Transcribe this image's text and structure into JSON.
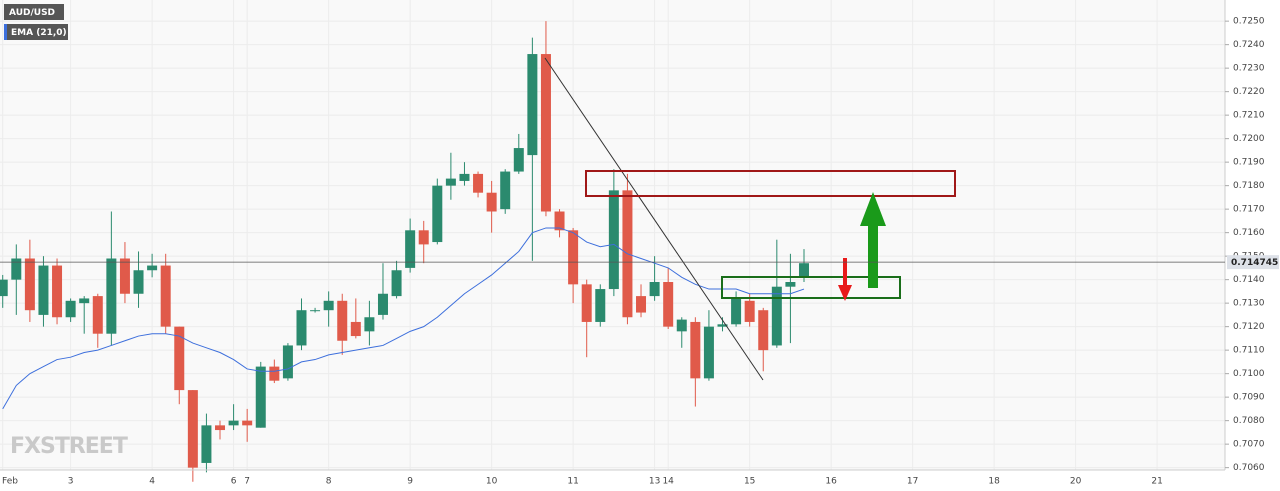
{
  "chart_data": {
    "type": "candlestick",
    "series": [
      {
        "name": "AUD/USD",
        "up_color": "#2b8a6e",
        "down_color": "#e05a4a",
        "x": [
          0,
          1,
          2,
          3,
          4,
          5,
          6,
          7,
          8,
          9,
          10,
          11,
          12,
          13,
          14,
          15,
          16,
          17,
          18,
          19,
          20,
          21,
          22,
          23,
          24,
          25,
          26,
          27,
          28,
          29,
          30,
          31,
          32,
          33,
          34,
          35,
          36,
          37,
          38,
          39,
          40,
          41,
          42,
          43,
          44,
          45,
          46,
          47,
          48,
          49,
          50,
          51,
          52,
          53,
          54,
          55,
          56,
          57,
          58,
          59
        ],
        "open": [
          0.7133,
          0.714,
          0.7149,
          0.7125,
          0.7146,
          0.7124,
          0.713,
          0.7133,
          0.7117,
          0.7149,
          0.7134,
          0.7144,
          0.7146,
          0.712,
          0.7093,
          0.7062,
          0.7078,
          0.7078,
          0.708,
          0.7077,
          0.7103,
          0.7098,
          0.7112,
          0.7127,
          0.7127,
          0.7131,
          0.7122,
          0.7118,
          0.7125,
          0.7133,
          0.7145,
          0.7161,
          0.7156,
          0.718,
          0.7182,
          0.7185,
          0.7177,
          0.717,
          0.7186,
          0.7193,
          0.7236,
          0.7169,
          0.7161,
          0.7138,
          0.7122,
          0.7136,
          0.7178,
          0.7133,
          0.7133,
          0.7139,
          0.7118,
          0.7122,
          0.7098,
          0.712,
          0.7121,
          0.7131,
          0.7127,
          0.7112,
          0.7137,
          0.7141
        ],
        "high": [
          0.7142,
          0.7155,
          0.7157,
          0.715,
          0.7149,
          0.7132,
          0.7133,
          0.7134,
          0.7169,
          0.7156,
          0.7152,
          0.7151,
          0.7151,
          0.712,
          0.7093,
          0.7083,
          0.708,
          0.7087,
          0.7085,
          0.7105,
          0.7106,
          0.7113,
          0.7132,
          0.7128,
          0.7135,
          0.7134,
          0.7132,
          0.7131,
          0.7147,
          0.7148,
          0.7166,
          0.7165,
          0.7183,
          0.7194,
          0.719,
          0.7186,
          0.7182,
          0.7187,
          0.7202,
          0.7243,
          0.725,
          0.717,
          0.7162,
          0.714,
          0.7138,
          0.7187,
          0.7185,
          0.7138,
          0.715,
          0.7145,
          0.7124,
          0.7124,
          0.7127,
          0.7124,
          0.7135,
          0.7134,
          0.7128,
          0.7157,
          0.7151,
          0.7153
        ],
        "low": [
          0.7128,
          0.7125,
          0.7122,
          0.712,
          0.7121,
          0.7122,
          0.7117,
          0.7111,
          0.7112,
          0.713,
          0.7128,
          0.7141,
          0.7117,
          0.7087,
          0.7054,
          0.7058,
          0.7072,
          0.7076,
          0.7071,
          0.7077,
          0.7096,
          0.7097,
          0.711,
          0.7126,
          0.712,
          0.7108,
          0.7115,
          0.7112,
          0.7123,
          0.7132,
          0.7143,
          0.7147,
          0.7155,
          0.7174,
          0.718,
          0.7175,
          0.716,
          0.7168,
          0.7185,
          0.7148,
          0.7167,
          0.7158,
          0.713,
          0.7107,
          0.712,
          0.7133,
          0.7121,
          0.7124,
          0.7131,
          0.7119,
          0.7111,
          0.7086,
          0.7097,
          0.7118,
          0.712,
          0.712,
          0.7101,
          0.7111,
          0.7113,
          0.7139
        ],
        "close": [
          0.714,
          0.7149,
          0.7127,
          0.7146,
          0.7124,
          0.7131,
          0.7132,
          0.7117,
          0.7149,
          0.7134,
          0.7144,
          0.7146,
          0.712,
          0.7093,
          0.706,
          0.7078,
          0.7076,
          0.708,
          0.7078,
          0.7103,
          0.7097,
          0.7112,
          0.7127,
          0.7127,
          0.7131,
          0.7114,
          0.7116,
          0.7124,
          0.7134,
          0.7144,
          0.7161,
          0.7155,
          0.718,
          0.7183,
          0.7185,
          0.7177,
          0.7169,
          0.7186,
          0.7196,
          0.7236,
          0.7169,
          0.7161,
          0.7138,
          0.7122,
          0.7136,
          0.7178,
          0.7124,
          0.7126,
          0.7139,
          0.712,
          0.7123,
          0.7098,
          0.712,
          0.7121,
          0.7132,
          0.7122,
          0.711,
          0.7137,
          0.7139,
          0.7147
        ]
      },
      {
        "name": "EMA (21,0)",
        "type": "line",
        "color": "#3d6fdc",
        "values": [
          0.7085,
          0.7095,
          0.71,
          0.7103,
          0.7106,
          0.7107,
          0.7109,
          0.711,
          0.7112,
          0.7114,
          0.7116,
          0.7117,
          0.7117,
          0.7116,
          0.7113,
          0.7111,
          0.7109,
          0.7106,
          0.7102,
          0.7101,
          0.7101,
          0.7102,
          0.7105,
          0.7106,
          0.7108,
          0.7109,
          0.711,
          0.7111,
          0.7112,
          0.7115,
          0.7118,
          0.712,
          0.7124,
          0.7129,
          0.7134,
          0.7138,
          0.7142,
          0.7147,
          0.7152,
          0.716,
          0.7162,
          0.7162,
          0.716,
          0.7156,
          0.7154,
          0.7155,
          0.7151,
          0.7149,
          0.7147,
          0.7145,
          0.7141,
          0.7138,
          0.7136,
          0.7136,
          0.7136,
          0.7134,
          0.7134,
          0.7134,
          0.7134,
          0.7136
        ]
      }
    ],
    "last_price": 0.714745,
    "watermark": "FXSTREET",
    "xlim": [
      -0.2,
      90
    ],
    "xticks": [
      {
        "value": 0,
        "label": "Feb"
      },
      3,
      4,
      6,
      7,
      8,
      9,
      10,
      11,
      13,
      14,
      15,
      16,
      17,
      18,
      20,
      21
    ],
    "xtick_pos": [
      0,
      5,
      11,
      17,
      18,
      24,
      30,
      36,
      42,
      48,
      49,
      55,
      61,
      67,
      73,
      79,
      85
    ],
    "ylim": [
      0.7059,
      0.7259
    ],
    "yticks": [
      {
        "value": 0.725,
        "label": "0.7250"
      },
      {
        "value": 0.724,
        "label": "0.7240"
      },
      {
        "value": 0.723,
        "label": "0.7230"
      },
      {
        "value": 0.722,
        "label": "0.7220"
      },
      {
        "value": 0.721,
        "label": "0.7210"
      },
      {
        "value": 0.72,
        "label": "0.7200"
      },
      {
        "value": 0.719,
        "label": "0.7190"
      },
      {
        "value": 0.718,
        "label": "0.7180"
      },
      {
        "value": 0.717,
        "label": "0.7170"
      },
      {
        "value": 0.716,
        "label": "0.7160"
      },
      {
        "value": 0.715,
        "label": "0.7150"
      },
      {
        "value": 0.714,
        "label": "0.7140"
      },
      {
        "value": 0.713,
        "label": "0.7130"
      },
      {
        "value": 0.712,
        "label": "0.7120"
      },
      {
        "value": 0.711,
        "label": "0.7110"
      },
      {
        "value": 0.71,
        "label": "0.7100"
      },
      {
        "value": 0.709,
        "label": "0.7090"
      },
      {
        "value": 0.708,
        "label": "0.7080"
      },
      {
        "value": 0.707,
        "label": "0.7070"
      },
      {
        "value": 0.706,
        "label": "0.7060"
      }
    ],
    "grid": true
  }
}
